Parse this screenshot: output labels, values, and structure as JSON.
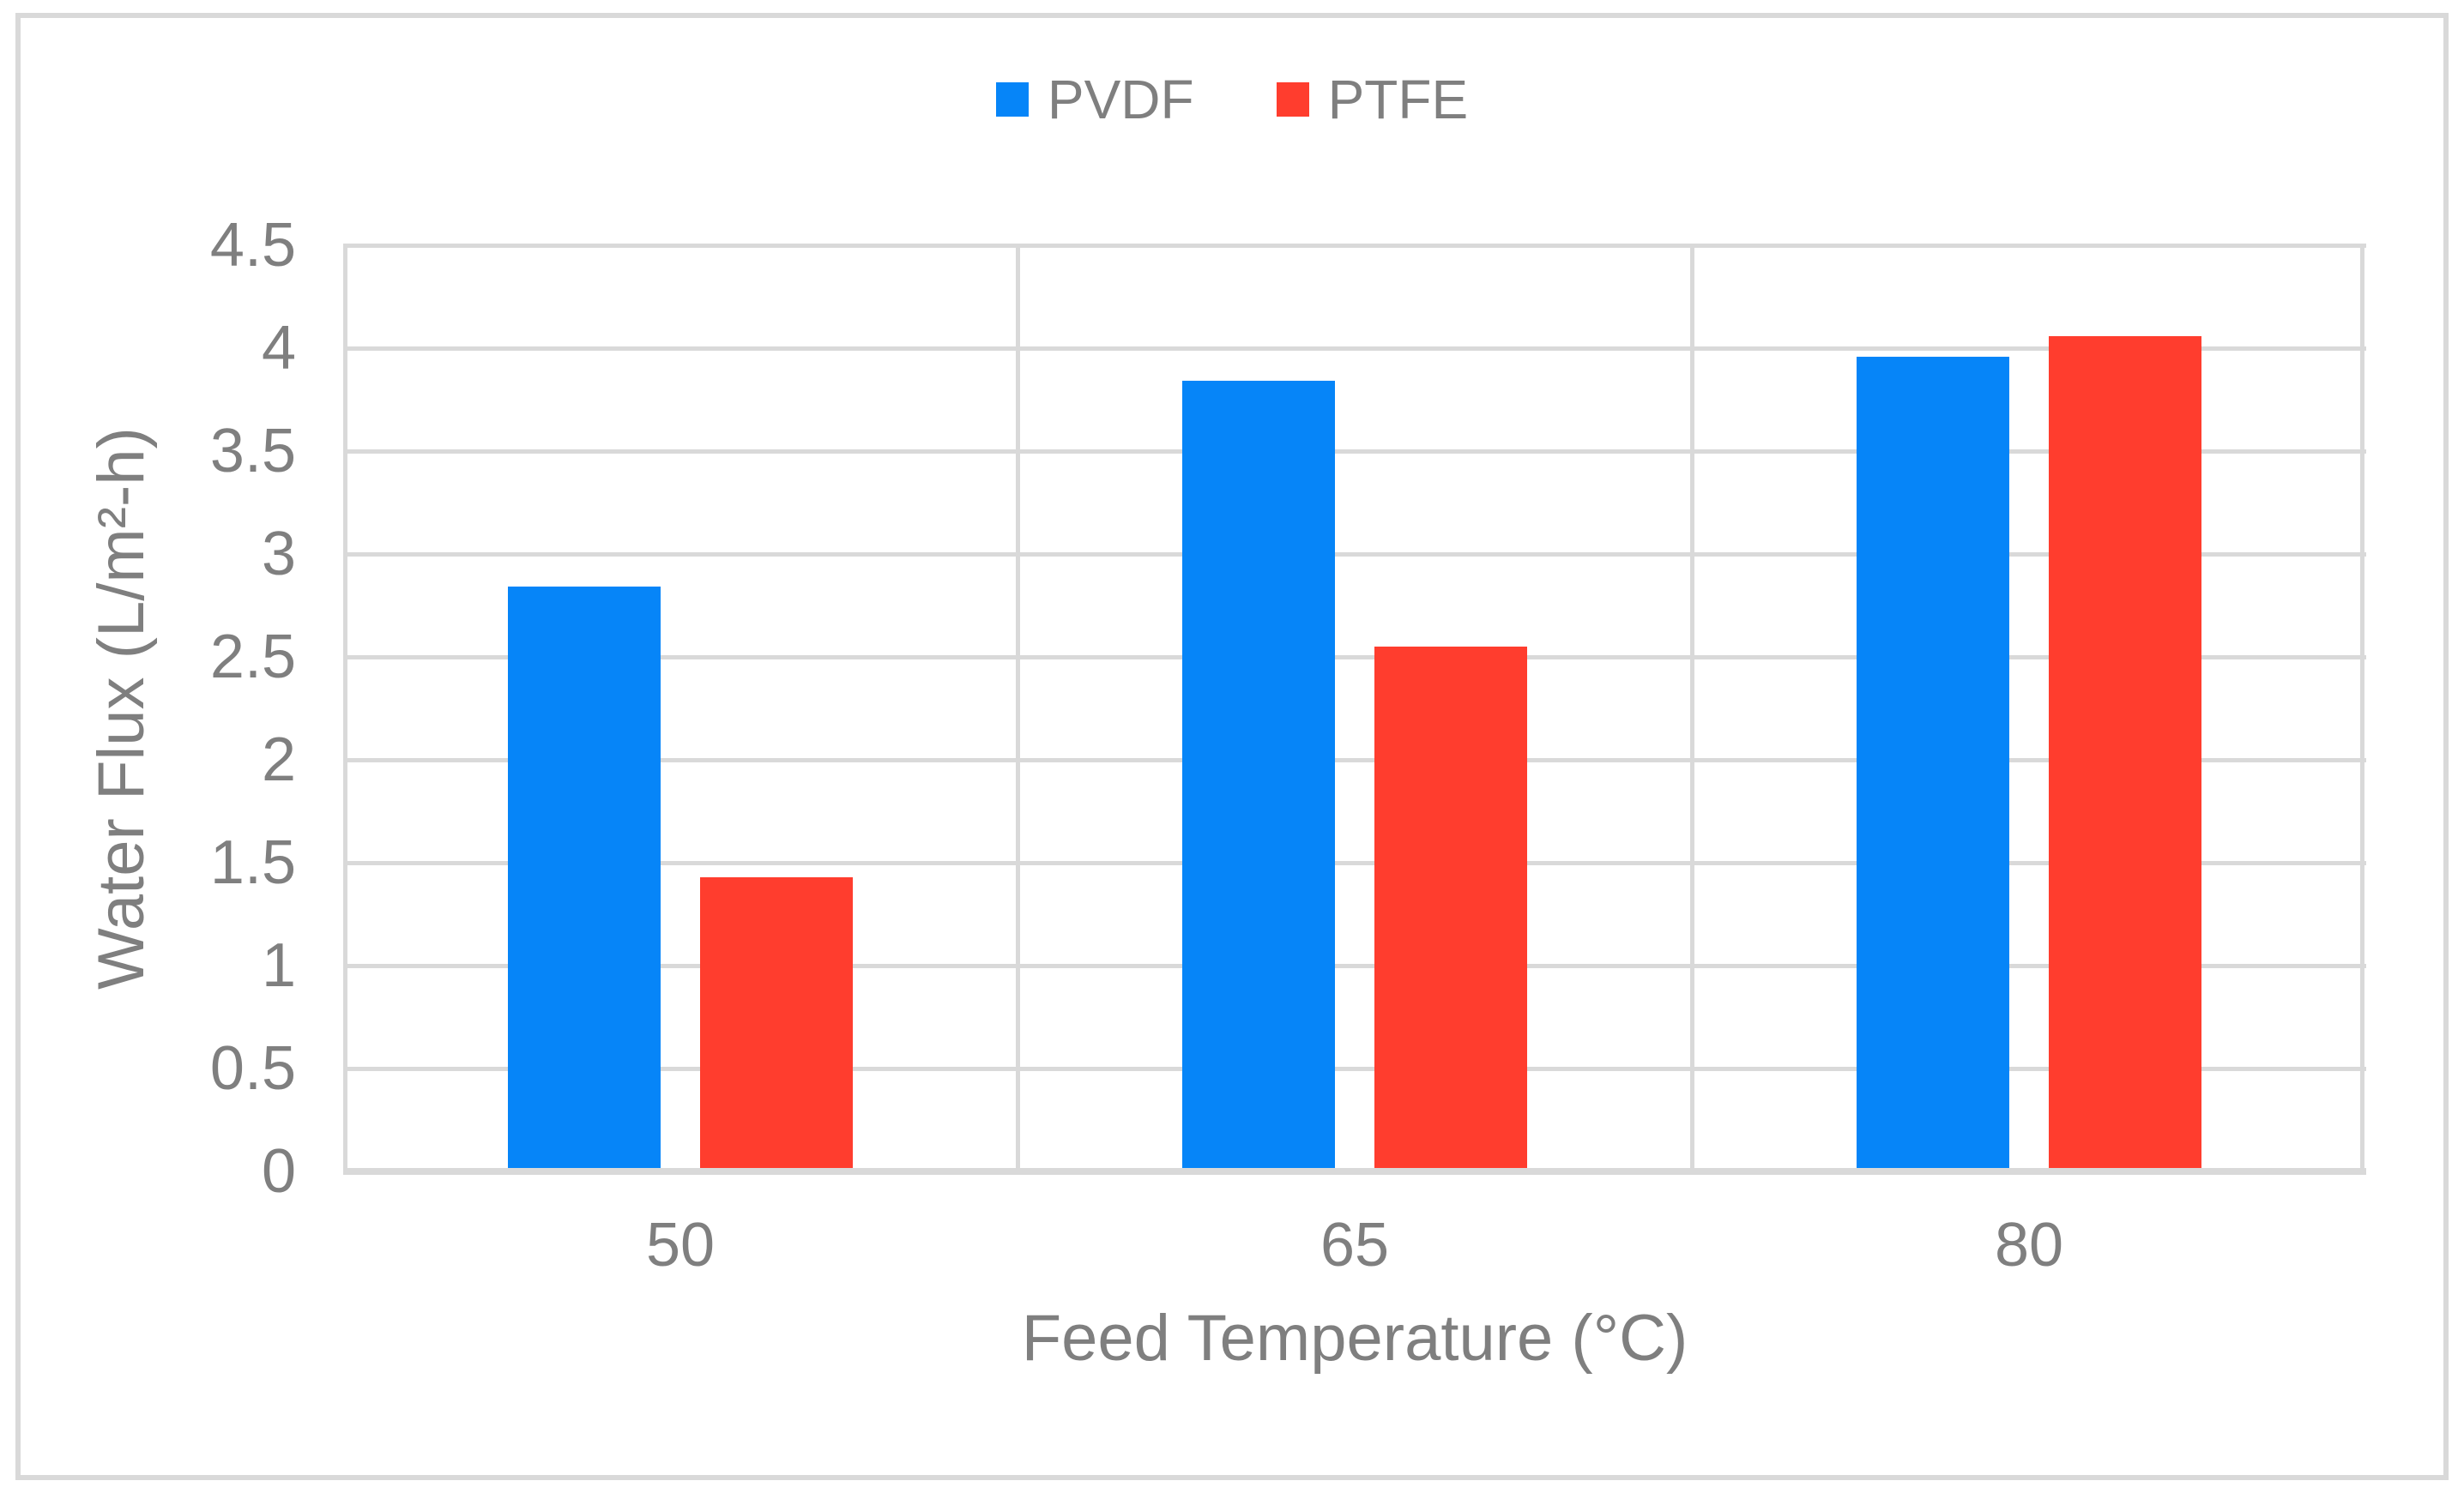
{
  "figure": {
    "background": "#FFFFFF",
    "border_color": "#D9D9D9"
  },
  "chart_data": {
    "type": "bar",
    "title": "",
    "xlabel": "Feed Temperature (°C)",
    "ylabel": "Water Flux (L/m²-h)",
    "categories": [
      "50",
      "65",
      "80"
    ],
    "series": [
      {
        "name": "PVDF",
        "color": "#0685F8",
        "values": [
          2.84,
          3.84,
          3.96
        ]
      },
      {
        "name": "PTFE",
        "color": "#FF3D2E",
        "values": [
          1.43,
          2.55,
          4.06
        ]
      }
    ],
    "ylim": [
      0,
      4.5
    ],
    "yticks": [
      0,
      0.5,
      1,
      1.5,
      2,
      2.5,
      3,
      3.5,
      4,
      4.5
    ],
    "grid": true,
    "gridline_color": "#D9D9D9",
    "legend_position": "top-center",
    "text_color": "#7F7F7F",
    "legend_items": [
      "PVDF",
      "PTFE"
    ]
  }
}
